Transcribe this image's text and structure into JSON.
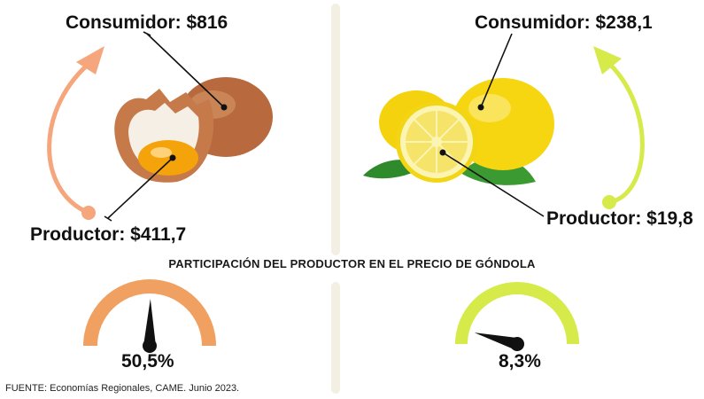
{
  "left": {
    "product_icon": "eggs-image",
    "consumer_label": "Consumidor: $816",
    "producer_label": "Productor: $411,7",
    "gauge": {
      "percent_label": "50,5%",
      "value": 50.5,
      "color": "#f0a060"
    },
    "arrow_color": "#f6a67c"
  },
  "right": {
    "product_icon": "lemons-image",
    "consumer_label": "Consumidor: $238,1",
    "producer_label": "Productor: $19,8",
    "gauge": {
      "percent_label": "8,3%",
      "value": 8.3,
      "color": "#d6ea4a"
    },
    "arrow_color": "#d6ea4a"
  },
  "section_title": "PARTICIPACIÓN DEL PRODUCTOR EN EL PRECIO DE GÓNDOLA",
  "source": "FUENTE: Economías Regionales, CAME. Junio 2023."
}
